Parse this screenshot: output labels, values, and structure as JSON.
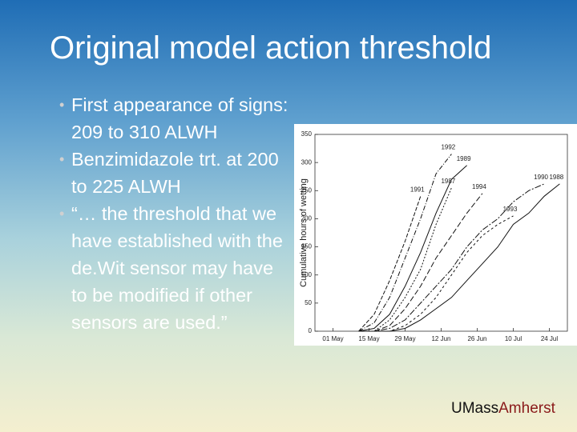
{
  "header": {
    "title": "Original model action threshold"
  },
  "bullets": [
    "First appearance of signs: 209 to 310 ALWH",
    "Benzimidazole trt. at 200 to 225 ALWH",
    "“… the threshold that we have established with the de.Wit sensor may have to be modified if other sensors are used.”"
  ],
  "chart_data": {
    "type": "line",
    "y_label": "Cumulative hours of wetting",
    "x": [
      10,
      16,
      22,
      28,
      34,
      40,
      46,
      52,
      58,
      64,
      70,
      76,
      82,
      88
    ],
    "xlim": [
      -7,
      91
    ],
    "xticks": [
      {
        "value": 0,
        "label": "01 May"
      },
      {
        "value": 14,
        "label": "15 May"
      },
      {
        "value": 28,
        "label": "29 May"
      },
      {
        "value": 42,
        "label": "12 Jun"
      },
      {
        "value": 56,
        "label": "26 Jun"
      },
      {
        "value": 70,
        "label": "10 Jul"
      },
      {
        "value": 84,
        "label": "24 Jul"
      }
    ],
    "ylim": [
      0,
      350
    ],
    "yticks": [
      0,
      50,
      100,
      150,
      200,
      250,
      300,
      350
    ],
    "series": [
      {
        "name": "1991",
        "color": "#111111",
        "dash": "5 2",
        "values": [
          0,
          30,
          90,
          160,
          240,
          null,
          null,
          null,
          null,
          null,
          null,
          null,
          null,
          null
        ]
      },
      {
        "name": "1992",
        "color": "#111111",
        "dash": "6 2 1 2",
        "values": [
          0,
          15,
          60,
          130,
          200,
          280,
          315,
          null,
          null,
          null,
          null,
          null,
          null,
          null
        ]
      },
      {
        "name": "1989",
        "color": "#111111",
        "dash": "",
        "values": [
          0,
          5,
          30,
          80,
          140,
          210,
          270,
          295,
          null,
          null,
          null,
          null,
          null,
          null
        ]
      },
      {
        "name": "1987",
        "color": "#111111",
        "dash": "2 2",
        "values": [
          0,
          0,
          20,
          60,
          110,
          190,
          255,
          null,
          null,
          null,
          null,
          null,
          null,
          null
        ]
      },
      {
        "name": "1994",
        "color": "#111111",
        "dash": "7 3",
        "values": [
          0,
          0,
          10,
          40,
          80,
          130,
          170,
          210,
          245,
          null,
          null,
          null,
          null,
          null
        ]
      },
      {
        "name": "1993",
        "color": "#111111",
        "dash": "3 3",
        "values": [
          0,
          0,
          0,
          10,
          30,
          60,
          100,
          140,
          170,
          190,
          205,
          null,
          null,
          null
        ]
      },
      {
        "name": "1990",
        "color": "#111111",
        "dash": "8 2 2 2",
        "values": [
          0,
          0,
          5,
          20,
          50,
          80,
          110,
          150,
          180,
          200,
          230,
          250,
          262,
          null
        ]
      },
      {
        "name": "1988",
        "color": "#111111",
        "dash": "",
        "values": [
          0,
          0,
          0,
          5,
          20,
          40,
          60,
          90,
          120,
          150,
          190,
          210,
          240,
          262
        ]
      }
    ]
  },
  "footer": {
    "brand": "UMass",
    "brand_accent": "Amherst"
  }
}
